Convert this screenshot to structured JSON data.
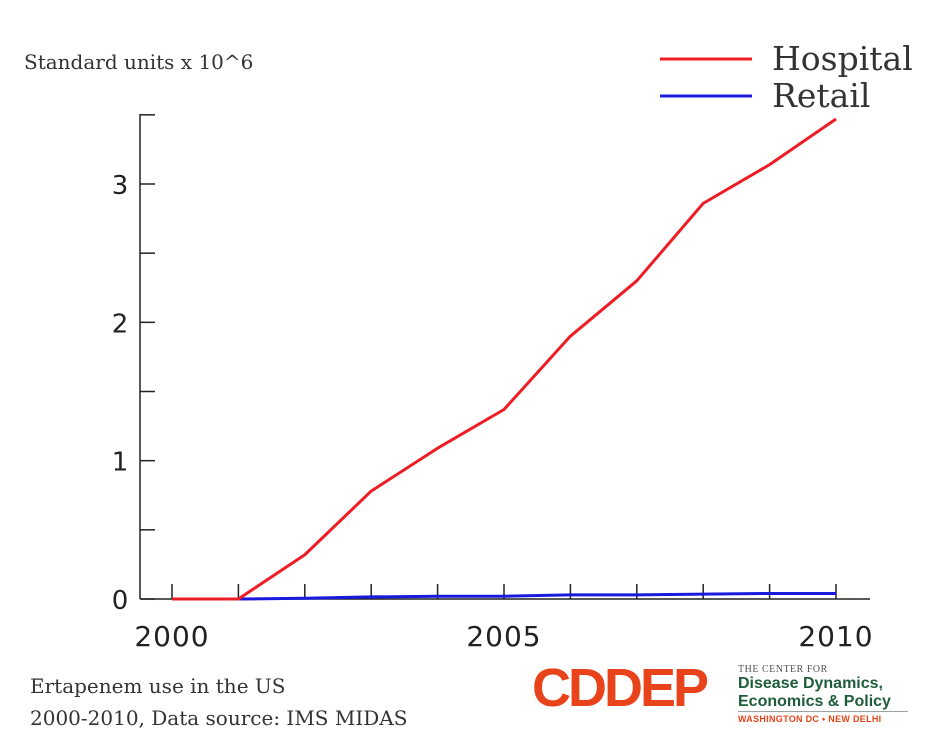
{
  "chart_data": {
    "type": "line",
    "title": "",
    "ylabel": "Standard units x 10^6",
    "xlabel": "",
    "x": [
      2000,
      2001,
      2002,
      2003,
      2004,
      2005,
      2006,
      2007,
      2008,
      2009,
      2010
    ],
    "series": [
      {
        "name": "Hospital",
        "color": "#ee1c25",
        "values": [
          0,
          0,
          0.32,
          0.78,
          1.09,
          1.37,
          1.9,
          2.3,
          2.86,
          3.14,
          3.47
        ]
      },
      {
        "name": "Retail",
        "color": "#1a1adf",
        "values": [
          0,
          0,
          0.005,
          0.015,
          0.02,
          0.02,
          0.03,
          0.03,
          0.035,
          0.04,
          0.04
        ]
      }
    ],
    "xlim": [
      2000,
      2010
    ],
    "ylim": [
      0,
      3.5
    ],
    "x_ticks": [
      2000,
      2005,
      2010
    ],
    "y_ticks": [
      0,
      1,
      2,
      3
    ],
    "grid": false,
    "legend_position": "top-right"
  },
  "caption": {
    "line1": "Ertapenem use in the US",
    "line2": "2000-2010, Data source: IMS MIDAS"
  },
  "logo": {
    "wordmark": "CDDEP",
    "line1": "THE CENTER FOR",
    "line2": "Disease Dynamics,",
    "line3": "Economics & Policy",
    "line4": "WASHINGTON DC • NEW DELHI"
  }
}
